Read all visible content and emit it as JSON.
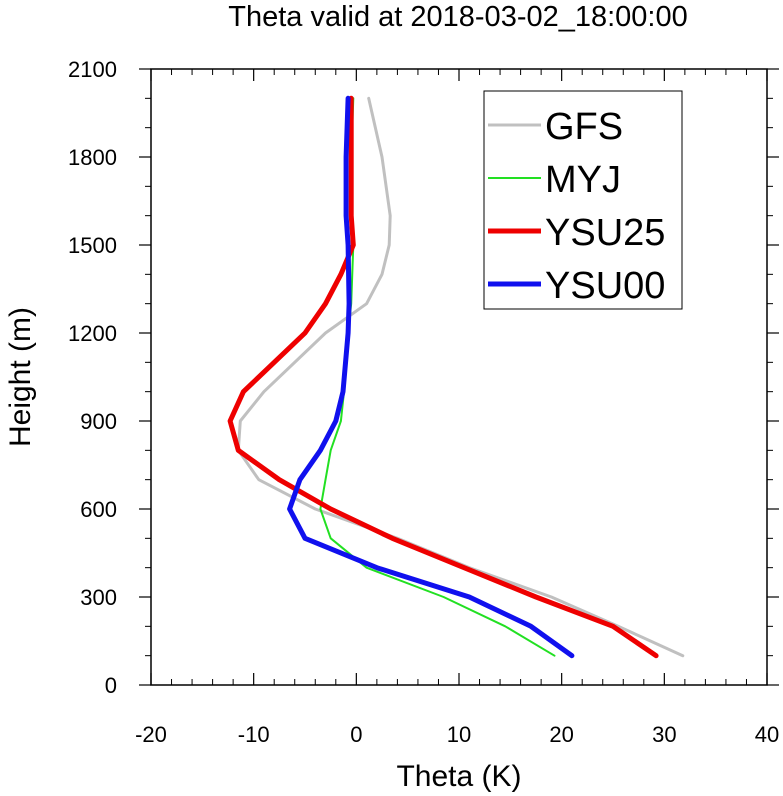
{
  "chart_data": {
    "type": "line",
    "title": "Theta valid at 2018-03-02_18:00:00",
    "xlabel": "Theta (K)",
    "ylabel": "Height (m)",
    "xlim": [
      -20,
      40
    ],
    "ylim": [
      0,
      2100
    ],
    "xticks": [
      "-20",
      "-10",
      "0",
      "10",
      "20",
      "30",
      "40"
    ],
    "yticks": [
      "0",
      "300",
      "600",
      "900",
      "1200",
      "1500",
      "1800",
      "2100"
    ],
    "grid": false,
    "legend_position": "top-right",
    "series": [
      {
        "name": "GFS",
        "color": "#c0c0c0",
        "x": [
          31.8,
          25.5,
          19.0,
          11.0,
          4.0,
          -4.0,
          -9.5,
          -11.5,
          -11.3,
          -9.0,
          -3.0,
          1.0,
          2.5,
          3.2,
          3.3,
          2.5,
          1.2
        ],
        "y": [
          100,
          200,
          300,
          400,
          500,
          600,
          700,
          800,
          900,
          1000,
          1200,
          1300,
          1400,
          1500,
          1600,
          1800,
          2000
        ]
      },
      {
        "name": "MYJ",
        "color": "#22e022",
        "x": [
          19.3,
          14.5,
          8.5,
          1.0,
          -2.5,
          -3.5,
          -3.0,
          -2.5,
          -1.5,
          -1.2,
          -0.8,
          -0.5,
          -0.3,
          -0.5,
          -0.5,
          -0.3
        ],
        "y": [
          100,
          200,
          300,
          400,
          500,
          600,
          700,
          800,
          900,
          1000,
          1200,
          1300,
          1500,
          1600,
          1800,
          2000
        ]
      },
      {
        "name": "YSU25",
        "color": "#ee0000",
        "x": [
          29.2,
          25.0,
          17.5,
          10.5,
          3.5,
          -2.5,
          -7.5,
          -11.5,
          -12.3,
          -11.0,
          -5.0,
          -3.0,
          -1.5,
          -0.3,
          -0.5,
          -0.5
        ],
        "y": [
          100,
          200,
          300,
          400,
          500,
          600,
          700,
          800,
          900,
          1000,
          1200,
          1300,
          1400,
          1500,
          1600,
          2000
        ]
      },
      {
        "name": "YSU00",
        "color": "#1010ee",
        "x": [
          21.0,
          17.0,
          11.0,
          2.0,
          -5.0,
          -6.5,
          -5.5,
          -3.5,
          -2.0,
          -1.3,
          -0.8,
          -0.7,
          -0.8,
          -1.0,
          -1.0,
          -0.8
        ],
        "y": [
          100,
          200,
          300,
          400,
          500,
          600,
          700,
          800,
          900,
          1000,
          1200,
          1300,
          1500,
          1600,
          1800,
          2000
        ]
      }
    ]
  }
}
